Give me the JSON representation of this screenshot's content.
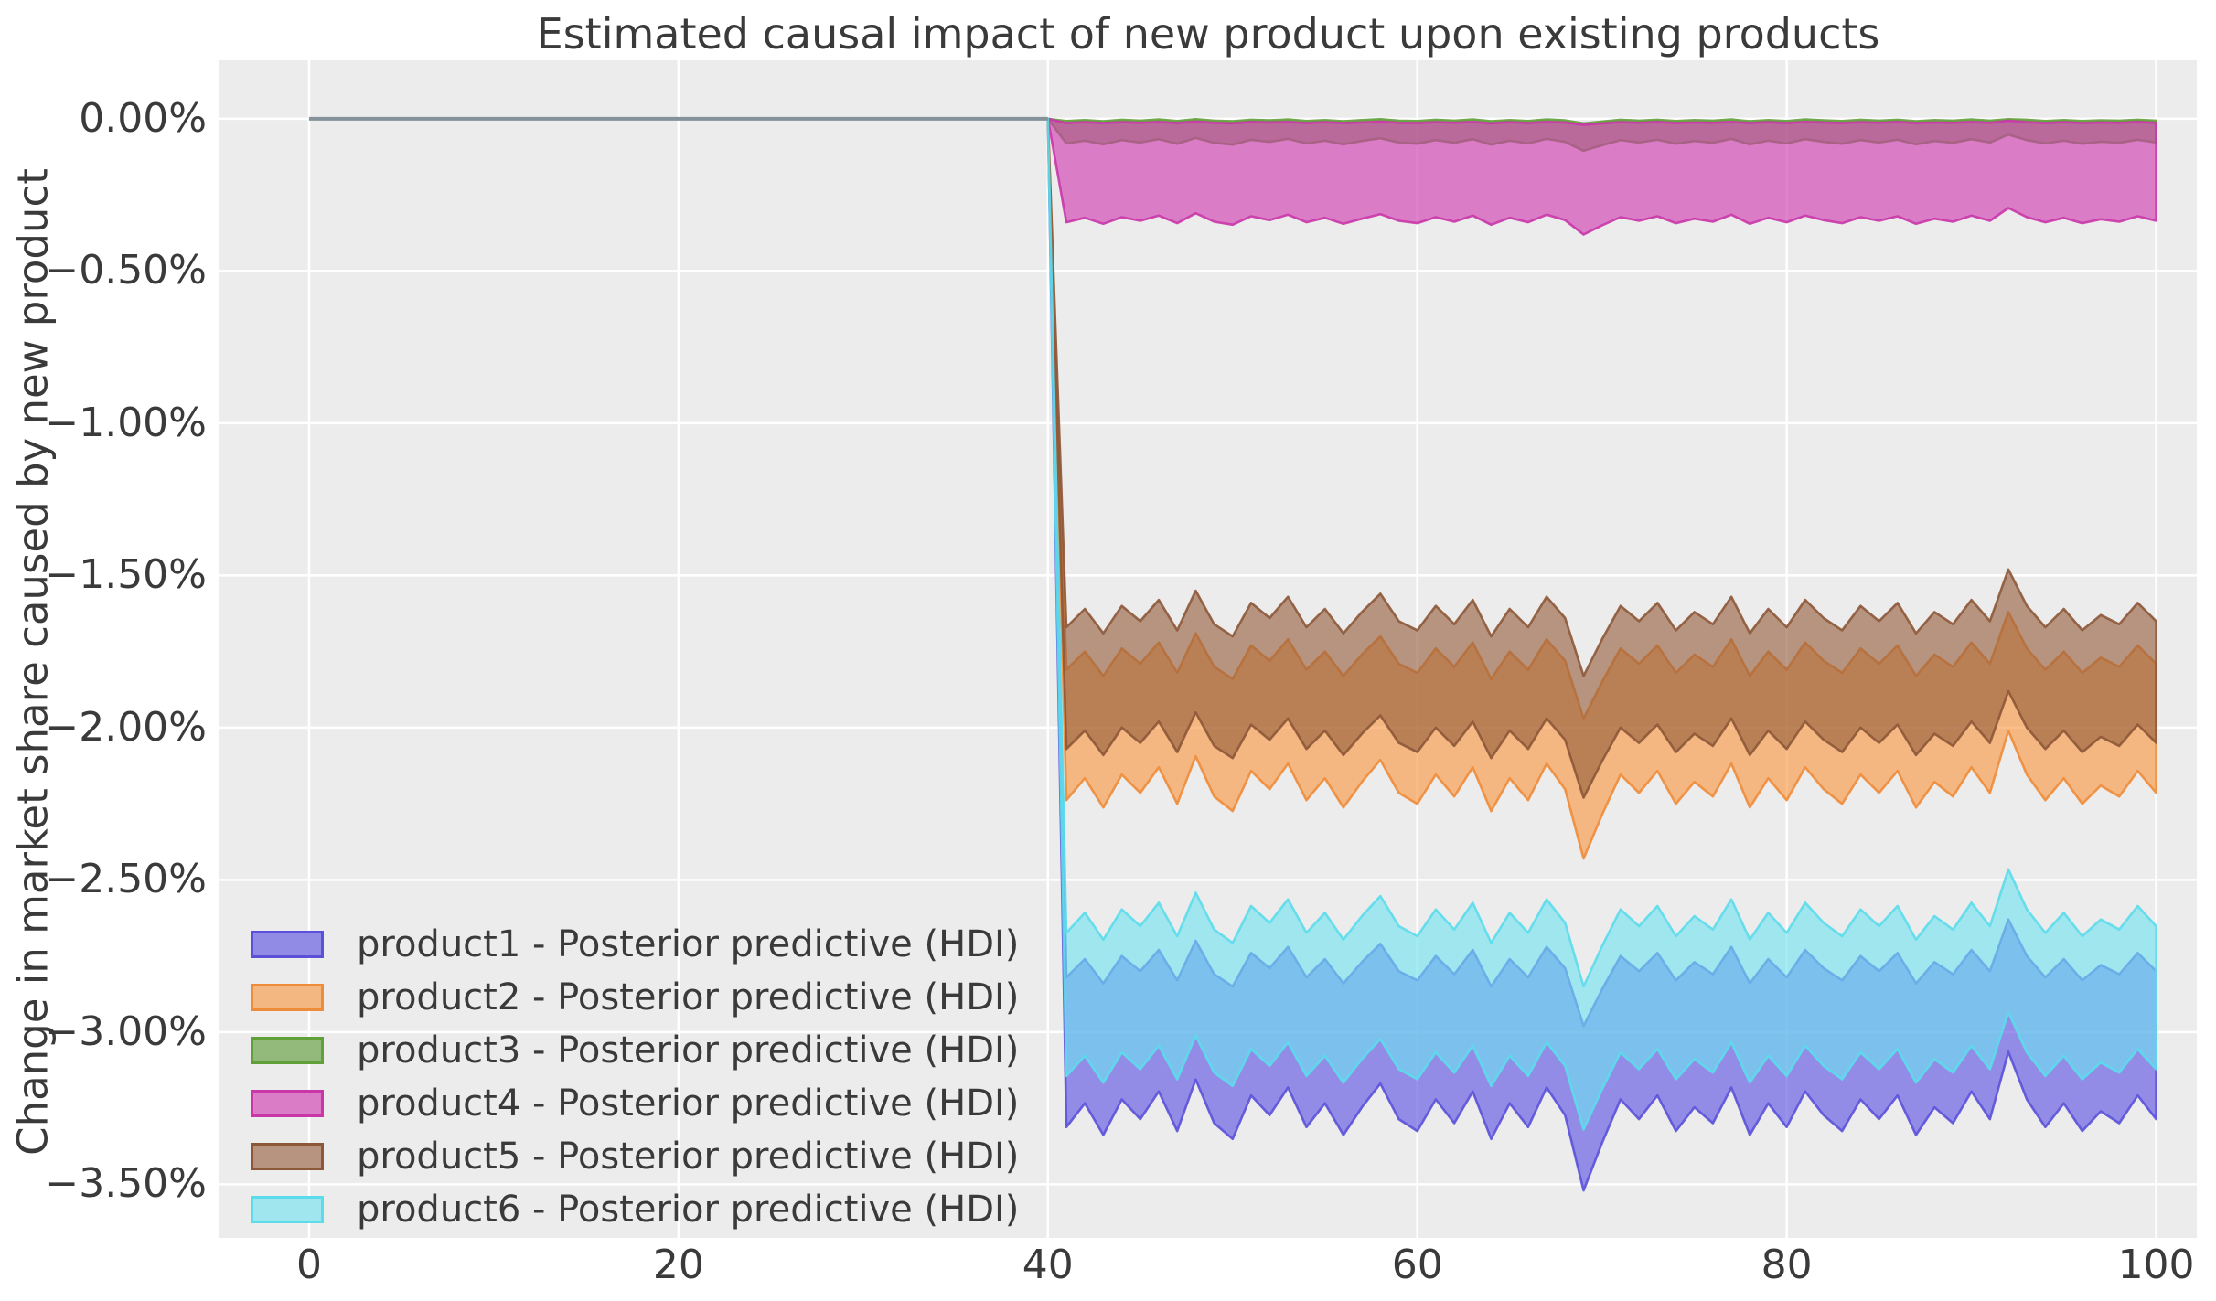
{
  "chart_data": {
    "type": "area",
    "title": "Estimated causal impact of new product upon existing products",
    "xlabel": "",
    "ylabel": "Change in market share caused by new product",
    "x_ticks": [
      {
        "v": 0,
        "label": "0"
      },
      {
        "v": 20,
        "label": "20"
      },
      {
        "v": 40,
        "label": "40"
      },
      {
        "v": 60,
        "label": "60"
      },
      {
        "v": 80,
        "label": "80"
      },
      {
        "v": 100,
        "label": "100"
      }
    ],
    "y_ticks": [
      {
        "v": 0,
        "label": "0.00%"
      },
      {
        "v": -0.5,
        "label": "−0.50%"
      },
      {
        "v": -1,
        "label": "−1.00%"
      },
      {
        "v": -1.5,
        "label": "−1.50%"
      },
      {
        "v": -2,
        "label": "−2.00%"
      },
      {
        "v": -2.5,
        "label": "−2.50%"
      },
      {
        "v": -3,
        "label": "−3.00%"
      },
      {
        "v": -3.5,
        "label": "−3.50%"
      }
    ],
    "xlim": [
      -4.85,
      102.2
    ],
    "ylim": [
      -3.676,
      0.192
    ],
    "grid": true,
    "legend_position": "lower left",
    "intervention_x": 40,
    "pre_period": {
      "x": [
        0,
        40
      ],
      "y": [
        0,
        0
      ],
      "line_color": "#849399"
    },
    "x": [
      40,
      41,
      42,
      43,
      44,
      45,
      46,
      47,
      48,
      49,
      50,
      51,
      52,
      53,
      54,
      55,
      56,
      57,
      58,
      59,
      60,
      61,
      62,
      63,
      64,
      65,
      66,
      67,
      68,
      69,
      70,
      71,
      72,
      73,
      74,
      75,
      76,
      77,
      78,
      79,
      80,
      81,
      82,
      83,
      84,
      85,
      86,
      87,
      88,
      89,
      90,
      91,
      92,
      93,
      94,
      95,
      96,
      97,
      98,
      99,
      100
    ],
    "series": [
      {
        "name": "product1 - Posterior predictive (HDI)",
        "color": "#5a50e2",
        "edge_color": "#5b51d9",
        "legend_fill": "#918be6",
        "upper": [
          0,
          -2.82,
          -2.76,
          -2.84,
          -2.75,
          -2.8,
          -2.73,
          -2.83,
          -2.7,
          -2.81,
          -2.85,
          -2.74,
          -2.79,
          -2.72,
          -2.82,
          -2.76,
          -2.84,
          -2.77,
          -2.71,
          -2.8,
          -2.83,
          -2.75,
          -2.81,
          -2.73,
          -2.85,
          -2.76,
          -2.82,
          -2.72,
          -2.79,
          -2.98,
          -2.86,
          -2.75,
          -2.8,
          -2.74,
          -2.83,
          -2.77,
          -2.81,
          -2.72,
          -2.84,
          -2.76,
          -2.82,
          -2.73,
          -2.79,
          -2.83,
          -2.75,
          -2.8,
          -2.74,
          -2.84,
          -2.77,
          -2.81,
          -2.73,
          -2.8,
          -2.63,
          -2.75,
          -2.82,
          -2.76,
          -2.83,
          -2.78,
          -2.81,
          -2.74,
          -2.8
        ],
        "lower": [
          0,
          -3.312,
          -3.234,
          -3.338,
          -3.221,
          -3.286,
          -3.195,
          -3.325,
          -3.156,
          -3.299,
          -3.351,
          -3.208,
          -3.273,
          -3.182,
          -3.312,
          -3.234,
          -3.338,
          -3.247,
          -3.169,
          -3.286,
          -3.325,
          -3.221,
          -3.299,
          -3.195,
          -3.351,
          -3.234,
          -3.312,
          -3.182,
          -3.273,
          -3.52,
          -3.364,
          -3.221,
          -3.286,
          -3.208,
          -3.325,
          -3.247,
          -3.299,
          -3.182,
          -3.338,
          -3.234,
          -3.312,
          -3.195,
          -3.273,
          -3.325,
          -3.221,
          -3.286,
          -3.208,
          -3.338,
          -3.247,
          -3.299,
          -3.195,
          -3.286,
          -3.065,
          -3.221,
          -3.312,
          -3.234,
          -3.325,
          -3.26,
          -3.299,
          -3.208,
          -3.286
        ]
      },
      {
        "name": "product2 - Posterior predictive (HDI)",
        "color": "#f8963f",
        "edge_color": "#ee8c3a",
        "legend_fill": "#f3b781",
        "upper": [
          0,
          -1.81,
          -1.75,
          -1.83,
          -1.74,
          -1.79,
          -1.72,
          -1.82,
          -1.69,
          -1.8,
          -1.84,
          -1.73,
          -1.78,
          -1.71,
          -1.81,
          -1.75,
          -1.83,
          -1.76,
          -1.7,
          -1.79,
          -1.82,
          -1.74,
          -1.8,
          -1.72,
          -1.84,
          -1.75,
          -1.81,
          -1.71,
          -1.78,
          -1.97,
          -1.85,
          -1.74,
          -1.79,
          -1.73,
          -1.82,
          -1.76,
          -1.8,
          -1.71,
          -1.83,
          -1.75,
          -1.81,
          -1.72,
          -1.78,
          -1.82,
          -1.74,
          -1.79,
          -1.73,
          -1.83,
          -1.76,
          -1.8,
          -1.72,
          -1.79,
          -1.62,
          -1.74,
          -1.81,
          -1.75,
          -1.82,
          -1.77,
          -1.8,
          -1.73,
          -1.79
        ],
        "lower": [
          0,
          -2.238,
          -2.166,
          -2.262,
          -2.154,
          -2.214,
          -2.13,
          -2.25,
          -2.094,
          -2.226,
          -2.274,
          -2.142,
          -2.202,
          -2.118,
          -2.238,
          -2.166,
          -2.262,
          -2.178,
          -2.106,
          -2.214,
          -2.25,
          -2.154,
          -2.226,
          -2.13,
          -2.274,
          -2.166,
          -2.238,
          -2.118,
          -2.202,
          -2.43,
          -2.286,
          -2.154,
          -2.214,
          -2.142,
          -2.25,
          -2.178,
          -2.226,
          -2.118,
          -2.262,
          -2.166,
          -2.238,
          -2.13,
          -2.202,
          -2.25,
          -2.154,
          -2.214,
          -2.142,
          -2.262,
          -2.178,
          -2.226,
          -2.13,
          -2.214,
          -2.01,
          -2.154,
          -2.238,
          -2.166,
          -2.25,
          -2.19,
          -2.226,
          -2.142,
          -2.214
        ]
      },
      {
        "name": "product3 - Posterior predictive (HDI)",
        "color": "#5d9c35",
        "edge_color": "#61a038",
        "legend_fill": "#93ba7a",
        "upper": [
          0,
          -0.007,
          -0.004,
          -0.008,
          -0.003,
          -0.006,
          -0.002,
          -0.007,
          -0.001,
          -0.006,
          -0.008,
          -0.003,
          -0.005,
          -0.002,
          -0.007,
          -0.004,
          -0.008,
          -0.004,
          -0.001,
          -0.006,
          -0.007,
          -0.003,
          -0.006,
          -0.002,
          -0.008,
          -0.004,
          -0.007,
          -0.002,
          -0.005,
          -0.015,
          -0.009,
          -0.003,
          -0.006,
          -0.003,
          -0.007,
          -0.004,
          -0.006,
          -0.002,
          -0.008,
          -0.004,
          -0.007,
          -0.002,
          -0.005,
          -0.007,
          -0.003,
          -0.006,
          -0.003,
          -0.008,
          -0.004,
          -0.006,
          -0.002,
          -0.006,
          -0.001,
          -0.003,
          -0.007,
          -0.004,
          -0.007,
          -0.005,
          -0.006,
          -0.003,
          -0.006
        ],
        "lower": [
          0,
          -0.081,
          -0.072,
          -0.084,
          -0.07,
          -0.078,
          -0.067,
          -0.082,
          -0.063,
          -0.079,
          -0.085,
          -0.069,
          -0.076,
          -0.066,
          -0.081,
          -0.072,
          -0.084,
          -0.073,
          -0.064,
          -0.078,
          -0.082,
          -0.07,
          -0.079,
          -0.067,
          -0.085,
          -0.072,
          -0.081,
          -0.066,
          -0.076,
          -0.105,
          -0.087,
          -0.07,
          -0.078,
          -0.069,
          -0.082,
          -0.073,
          -0.079,
          -0.066,
          -0.084,
          -0.072,
          -0.081,
          -0.067,
          -0.076,
          -0.082,
          -0.07,
          -0.078,
          -0.069,
          -0.084,
          -0.073,
          -0.079,
          -0.067,
          -0.078,
          -0.052,
          -0.07,
          -0.081,
          -0.072,
          -0.082,
          -0.075,
          -0.079,
          -0.069,
          -0.078
        ]
      },
      {
        "name": "product4 - Posterior predictive (HDI)",
        "color": "#d138af",
        "edge_color": "#c936a8",
        "legend_fill": "#db7cc6",
        "upper": [
          0,
          -0.014,
          -0.011,
          -0.014,
          -0.011,
          -0.013,
          -0.01,
          -0.014,
          -0.009,
          -0.013,
          -0.015,
          -0.01,
          -0.012,
          -0.01,
          -0.014,
          -0.011,
          -0.014,
          -0.012,
          -0.009,
          -0.013,
          -0.014,
          -0.011,
          -0.013,
          -0.01,
          -0.015,
          -0.011,
          -0.014,
          -0.01,
          -0.012,
          -0.02,
          -0.015,
          -0.011,
          -0.013,
          -0.01,
          -0.014,
          -0.012,
          -0.013,
          -0.01,
          -0.014,
          -0.011,
          -0.014,
          -0.01,
          -0.012,
          -0.014,
          -0.011,
          -0.013,
          -0.01,
          -0.014,
          -0.012,
          -0.013,
          -0.01,
          -0.013,
          -0.006,
          -0.011,
          -0.014,
          -0.011,
          -0.014,
          -0.012,
          -0.013,
          -0.01,
          -0.013
        ],
        "lower": [
          0,
          -0.34,
          -0.325,
          -0.345,
          -0.323,
          -0.335,
          -0.318,
          -0.343,
          -0.31,
          -0.338,
          -0.348,
          -0.32,
          -0.333,
          -0.315,
          -0.34,
          -0.325,
          -0.345,
          -0.328,
          -0.313,
          -0.335,
          -0.343,
          -0.323,
          -0.338,
          -0.318,
          -0.348,
          -0.325,
          -0.34,
          -0.315,
          -0.333,
          -0.38,
          -0.35,
          -0.323,
          -0.335,
          -0.32,
          -0.343,
          -0.328,
          -0.338,
          -0.315,
          -0.345,
          -0.325,
          -0.34,
          -0.318,
          -0.333,
          -0.343,
          -0.323,
          -0.335,
          -0.32,
          -0.345,
          -0.328,
          -0.338,
          -0.318,
          -0.335,
          -0.293,
          -0.323,
          -0.34,
          -0.325,
          -0.343,
          -0.33,
          -0.338,
          -0.32,
          -0.335
        ]
      },
      {
        "name": "product5 - Posterior predictive (HDI)",
        "color": "#955e3c",
        "edge_color": "#8d5838",
        "legend_fill": "#b6947f",
        "upper": [
          0,
          -1.67,
          -1.61,
          -1.69,
          -1.6,
          -1.65,
          -1.58,
          -1.68,
          -1.55,
          -1.66,
          -1.7,
          -1.59,
          -1.64,
          -1.57,
          -1.67,
          -1.61,
          -1.69,
          -1.62,
          -1.56,
          -1.65,
          -1.68,
          -1.6,
          -1.66,
          -1.58,
          -1.7,
          -1.61,
          -1.67,
          -1.57,
          -1.64,
          -1.83,
          -1.71,
          -1.6,
          -1.65,
          -1.59,
          -1.68,
          -1.62,
          -1.66,
          -1.57,
          -1.69,
          -1.61,
          -1.67,
          -1.58,
          -1.64,
          -1.68,
          -1.6,
          -1.65,
          -1.59,
          -1.69,
          -1.62,
          -1.66,
          -1.58,
          -1.65,
          -1.48,
          -1.6,
          -1.67,
          -1.61,
          -1.68,
          -1.63,
          -1.66,
          -1.59,
          -1.65
        ],
        "lower": [
          0,
          -2.07,
          -2.01,
          -2.09,
          -2.0,
          -2.05,
          -1.98,
          -2.08,
          -1.95,
          -2.06,
          -2.1,
          -1.99,
          -2.04,
          -1.97,
          -2.07,
          -2.01,
          -2.09,
          -2.02,
          -1.96,
          -2.05,
          -2.08,
          -2.0,
          -2.06,
          -1.98,
          -2.1,
          -2.01,
          -2.07,
          -1.97,
          -2.04,
          -2.23,
          -2.11,
          -2.0,
          -2.05,
          -1.99,
          -2.08,
          -2.02,
          -2.06,
          -1.97,
          -2.09,
          -2.01,
          -2.07,
          -1.98,
          -2.04,
          -2.08,
          -2.0,
          -2.05,
          -1.99,
          -2.09,
          -2.02,
          -2.06,
          -1.98,
          -2.05,
          -1.88,
          -2.0,
          -2.07,
          -2.01,
          -2.08,
          -2.03,
          -2.06,
          -1.99,
          -2.05
        ]
      },
      {
        "name": "product6 - Posterior predictive (HDI)",
        "color": "#70e2f0",
        "edge_color": "#5cdbeb",
        "legend_fill": "#9fe6ef",
        "upper": [
          0,
          -2.674,
          -2.608,
          -2.696,
          -2.597,
          -2.652,
          -2.575,
          -2.685,
          -2.542,
          -2.663,
          -2.707,
          -2.586,
          -2.641,
          -2.564,
          -2.674,
          -2.608,
          -2.696,
          -2.619,
          -2.553,
          -2.652,
          -2.685,
          -2.597,
          -2.663,
          -2.575,
          -2.707,
          -2.608,
          -2.674,
          -2.564,
          -2.641,
          -2.85,
          -2.718,
          -2.597,
          -2.652,
          -2.586,
          -2.685,
          -2.619,
          -2.663,
          -2.564,
          -2.696,
          -2.608,
          -2.674,
          -2.575,
          -2.641,
          -2.685,
          -2.597,
          -2.652,
          -2.586,
          -2.696,
          -2.619,
          -2.663,
          -2.575,
          -2.652,
          -2.465,
          -2.597,
          -2.674,
          -2.608,
          -2.685,
          -2.63,
          -2.663,
          -2.586,
          -2.652
        ],
        "lower": [
          0,
          -3.144,
          -3.078,
          -3.166,
          -3.067,
          -3.122,
          -3.045,
          -3.155,
          -3.012,
          -3.133,
          -3.177,
          -3.056,
          -3.111,
          -3.034,
          -3.144,
          -3.078,
          -3.166,
          -3.089,
          -3.023,
          -3.122,
          -3.155,
          -3.067,
          -3.133,
          -3.045,
          -3.177,
          -3.078,
          -3.144,
          -3.034,
          -3.111,
          -3.32,
          -3.188,
          -3.067,
          -3.122,
          -3.056,
          -3.155,
          -3.089,
          -3.133,
          -3.034,
          -3.166,
          -3.078,
          -3.144,
          -3.045,
          -3.111,
          -3.155,
          -3.067,
          -3.122,
          -3.056,
          -3.166,
          -3.089,
          -3.133,
          -3.045,
          -3.122,
          -2.935,
          -3.067,
          -3.144,
          -3.078,
          -3.155,
          -3.1,
          -3.133,
          -3.056,
          -3.122
        ]
      }
    ]
  },
  "style": {
    "canvas_bg": "#ffffff",
    "plot_bg": "#ececec",
    "grid_color": "#ffffff",
    "text_color": "#3a3a3a",
    "fill_opacity": 0.62,
    "edge_opacity": 0.9
  }
}
